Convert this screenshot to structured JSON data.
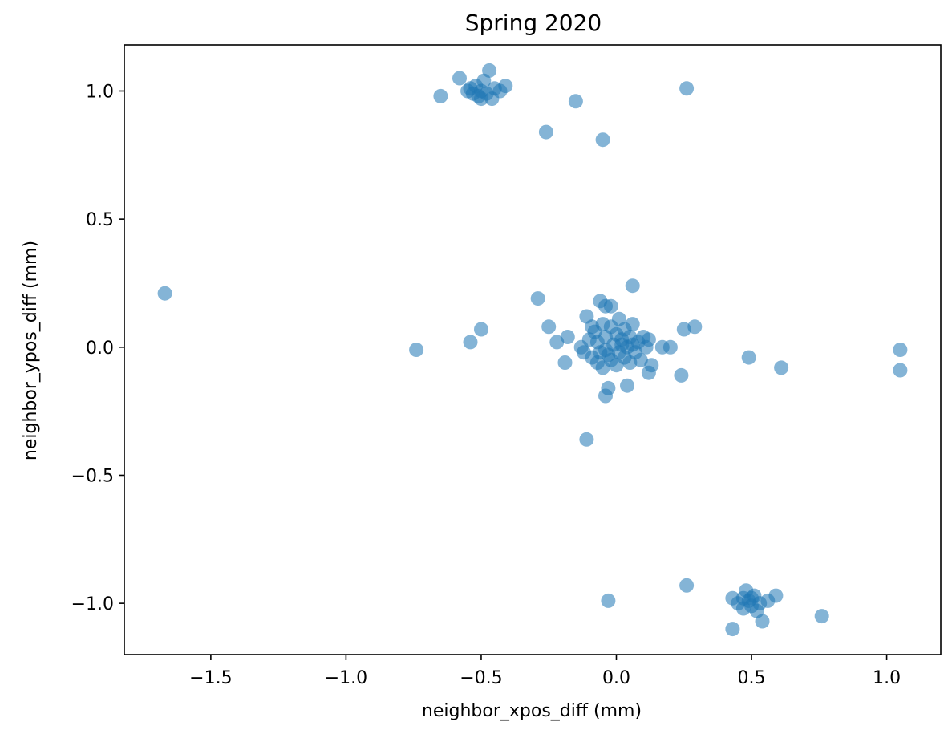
{
  "chart_data": {
    "type": "scatter",
    "title": "Spring 2020",
    "xlabel": "neighbor_xpos_diff (mm)",
    "ylabel": "neighbor_ypos_diff (mm)",
    "xlim": [
      -1.82,
      1.2
    ],
    "ylim": [
      -1.2,
      1.18
    ],
    "xticks": [
      -1.5,
      -1.0,
      -0.5,
      0.0,
      0.5,
      1.0
    ],
    "xtick_labels": [
      "−1.5",
      "−1.0",
      "−0.5",
      "0.0",
      "0.5",
      "1.0"
    ],
    "yticks": [
      -1.0,
      -0.5,
      0.0,
      0.5,
      1.0
    ],
    "ytick_labels": [
      "−1.0",
      "−0.5",
      "0.0",
      "0.5",
      "1.0"
    ],
    "grid": false,
    "marker_color": "#1f77b4",
    "marker_alpha": 0.55,
    "points": [
      [
        -1.67,
        0.21
      ],
      [
        -0.74,
        -0.01
      ],
      [
        -0.54,
        0.02
      ],
      [
        -0.5,
        0.07
      ],
      [
        -0.29,
        0.19
      ],
      [
        -0.25,
        0.08
      ],
      [
        -0.22,
        0.02
      ],
      [
        -0.19,
        -0.06
      ],
      [
        -0.18,
        0.04
      ],
      [
        -0.11,
        0.12
      ],
      [
        -0.06,
        0.18
      ],
      [
        -0.04,
        0.16
      ],
      [
        -0.02,
        0.16
      ],
      [
        0.06,
        0.24
      ],
      [
        -0.11,
        -0.36
      ],
      [
        -0.04,
        -0.19
      ],
      [
        -0.03,
        -0.16
      ],
      [
        0.04,
        -0.15
      ],
      [
        0.12,
        -0.1
      ],
      [
        0.13,
        -0.07
      ],
      [
        0.17,
        0.0
      ],
      [
        0.2,
        0.0
      ],
      [
        0.24,
        -0.11
      ],
      [
        0.25,
        0.07
      ],
      [
        0.29,
        0.08
      ],
      [
        0.49,
        -0.04
      ],
      [
        0.61,
        -0.08
      ],
      [
        1.05,
        -0.01
      ],
      [
        1.05,
        -0.09
      ],
      [
        -0.12,
        -0.02
      ],
      [
        -0.1,
        0.03
      ],
      [
        -0.09,
        -0.04
      ],
      [
        -0.08,
        0.06
      ],
      [
        -0.07,
        -0.06
      ],
      [
        -0.07,
        0.02
      ],
      [
        -0.06,
        -0.02
      ],
      [
        -0.05,
        0.09
      ],
      [
        -0.05,
        -0.08
      ],
      [
        -0.04,
        0.04
      ],
      [
        -0.03,
        -0.03
      ],
      [
        -0.02,
        0.08
      ],
      [
        -0.02,
        -0.05
      ],
      [
        -0.01,
        0.01
      ],
      [
        0.0,
        0.05
      ],
      [
        0.0,
        -0.07
      ],
      [
        0.01,
        0.11
      ],
      [
        0.01,
        -0.02
      ],
      [
        0.02,
        0.03
      ],
      [
        0.03,
        -0.04
      ],
      [
        0.03,
        0.07
      ],
      [
        0.04,
        0.0
      ],
      [
        0.05,
        -0.06
      ],
      [
        0.05,
        0.04
      ],
      [
        0.06,
        0.09
      ],
      [
        0.07,
        -0.02
      ],
      [
        0.08,
        0.02
      ],
      [
        0.09,
        -0.05
      ],
      [
        0.1,
        0.04
      ],
      [
        0.11,
        0.0
      ],
      [
        0.12,
        0.03
      ],
      [
        -0.13,
        0.0
      ],
      [
        -0.09,
        0.08
      ],
      [
        0.02,
        0.01
      ],
      [
        -0.04,
        -0.01
      ],
      [
        0.06,
        0.01
      ],
      [
        -0.58,
        1.05
      ],
      [
        -0.55,
        1.0
      ],
      [
        -0.53,
        0.99
      ],
      [
        -0.52,
        1.02
      ],
      [
        -0.51,
        0.98
      ],
      [
        -0.5,
        1.0
      ],
      [
        -0.49,
        1.04
      ],
      [
        -0.48,
        0.99
      ],
      [
        -0.47,
        1.08
      ],
      [
        -0.46,
        0.97
      ],
      [
        -0.45,
        1.01
      ],
      [
        -0.43,
        1.0
      ],
      [
        -0.41,
        1.02
      ],
      [
        -0.65,
        0.98
      ],
      [
        -0.54,
        1.01
      ],
      [
        -0.5,
        0.97
      ],
      [
        -0.15,
        0.96
      ],
      [
        -0.26,
        0.84
      ],
      [
        -0.05,
        0.81
      ],
      [
        0.26,
        1.01
      ],
      [
        0.43,
        -0.98
      ],
      [
        0.45,
        -1.0
      ],
      [
        0.47,
        -1.02
      ],
      [
        0.48,
        -0.95
      ],
      [
        0.49,
        -0.99
      ],
      [
        0.5,
        -1.01
      ],
      [
        0.51,
        -0.97
      ],
      [
        0.52,
        -1.03
      ],
      [
        0.53,
        -1.0
      ],
      [
        0.54,
        -1.07
      ],
      [
        0.56,
        -0.99
      ],
      [
        0.59,
        -0.97
      ],
      [
        0.5,
        -0.98
      ],
      [
        0.47,
        -0.98
      ],
      [
        0.43,
        -1.1
      ],
      [
        0.76,
        -1.05
      ],
      [
        0.26,
        -0.93
      ],
      [
        -0.03,
        -0.99
      ]
    ]
  }
}
